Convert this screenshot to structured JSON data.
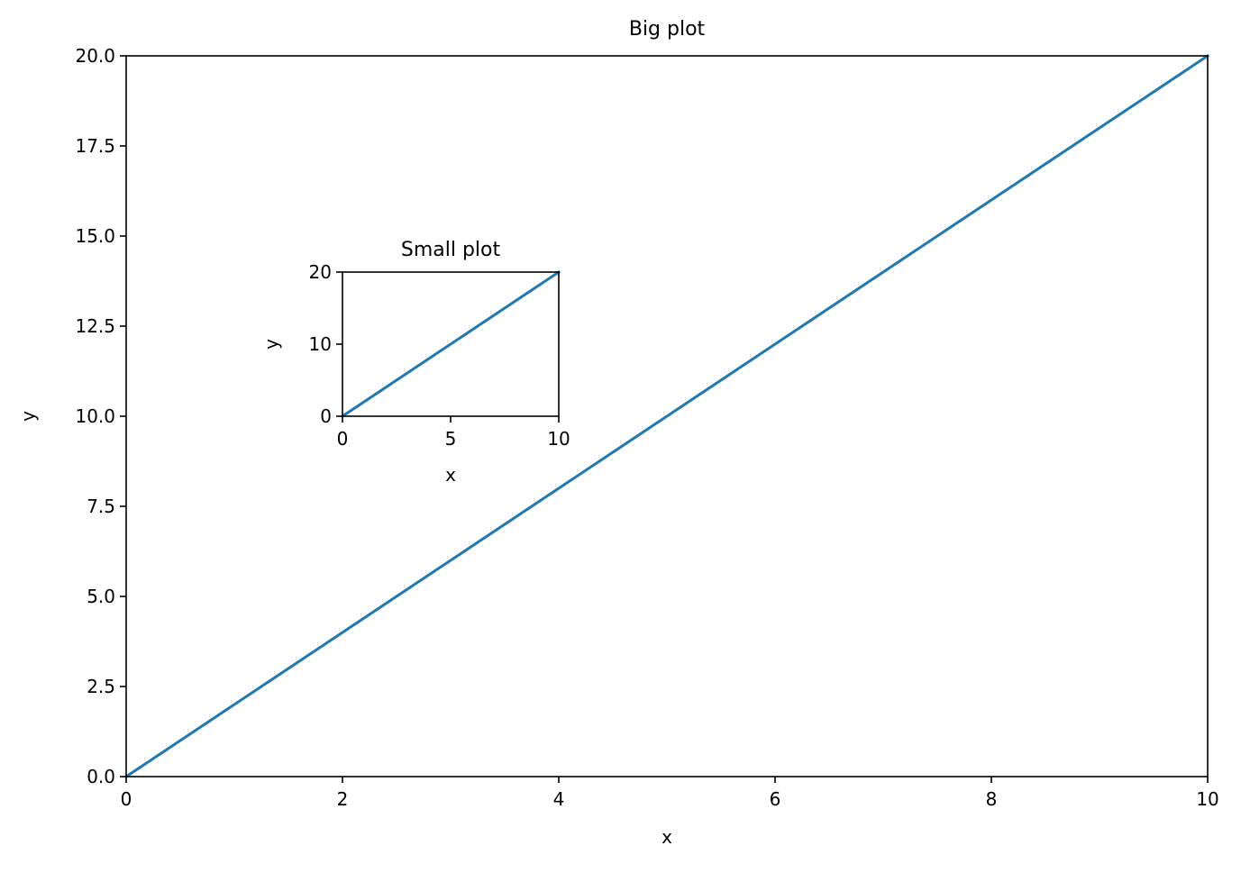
{
  "colors": {
    "line": "#1f77b4",
    "axes": "#000000",
    "background": "#ffffff"
  },
  "chart_data": [
    {
      "type": "line",
      "title": "Big plot",
      "xlabel": "x",
      "ylabel": "y",
      "xlim": [
        0,
        10
      ],
      "ylim": [
        0,
        20
      ],
      "xticks": [
        0,
        2,
        4,
        6,
        8,
        10
      ],
      "xtick_labels": [
        "0",
        "2",
        "4",
        "6",
        "8",
        "10"
      ],
      "yticks": [
        0,
        2.5,
        5,
        7.5,
        10,
        12.5,
        15,
        17.5,
        20
      ],
      "ytick_labels": [
        "0.0",
        "2.5",
        "5.0",
        "7.5",
        "10.0",
        "12.5",
        "15.0",
        "17.5",
        "20.0"
      ],
      "grid": false,
      "series": [
        {
          "x": [
            0,
            10
          ],
          "y": [
            0,
            20
          ]
        }
      ]
    },
    {
      "type": "line",
      "title": "Small plot",
      "xlabel": "x",
      "ylabel": "y",
      "xlim": [
        0,
        10
      ],
      "ylim": [
        0,
        20
      ],
      "xticks": [
        0,
        5,
        10
      ],
      "xtick_labels": [
        "0",
        "5",
        "10"
      ],
      "yticks": [
        0,
        10,
        20
      ],
      "ytick_labels": [
        "0",
        "10",
        "20"
      ],
      "grid": false,
      "series": [
        {
          "x": [
            0,
            10
          ],
          "y": [
            0,
            20
          ]
        }
      ]
    }
  ]
}
